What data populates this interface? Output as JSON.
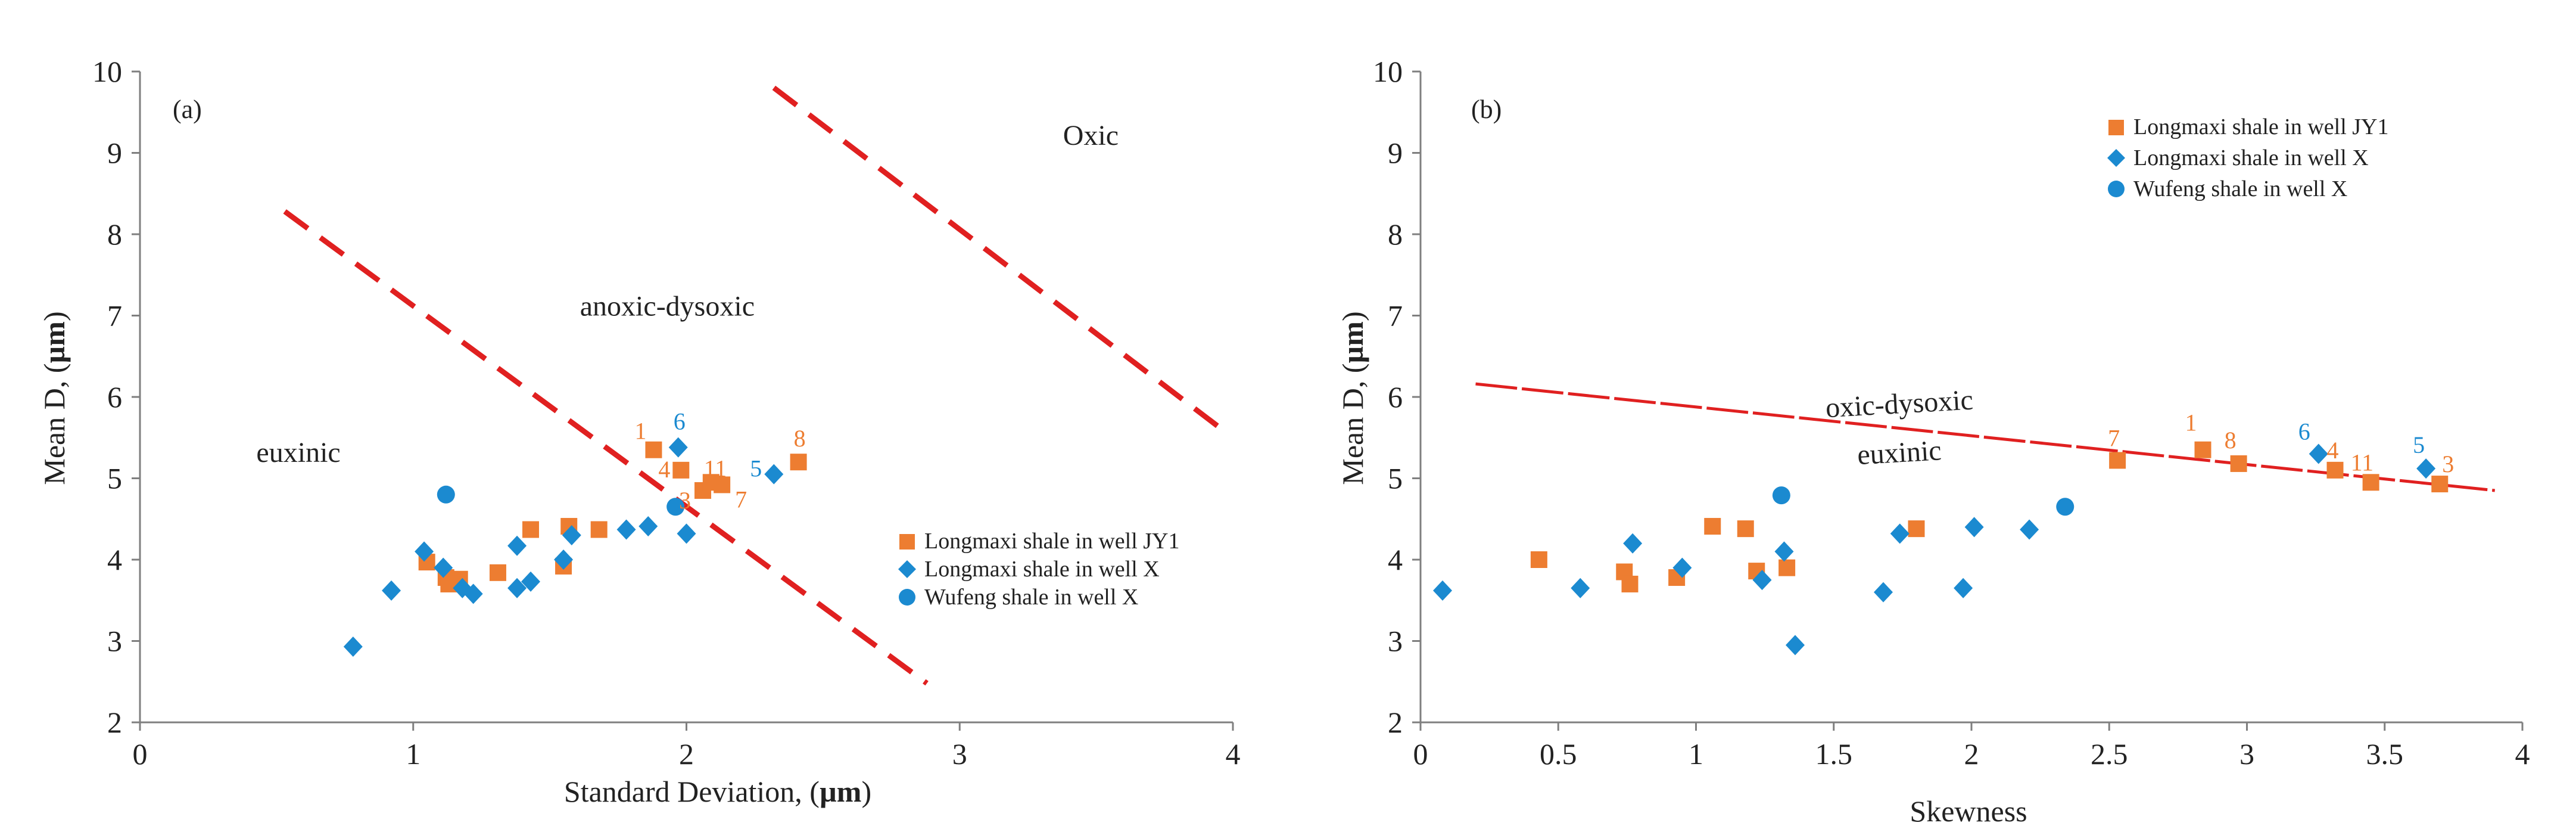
{
  "colors": {
    "jy1": "#ED7D31",
    "x": "#1B8AD0",
    "wufeng": "#1B8AD0",
    "line": "#E02020",
    "axis": "#7f7f7f"
  },
  "chart_data": [
    {
      "id": "a",
      "type": "scatter",
      "panel_label": "(a)",
      "xlabel_prefix": "Standard Deviation, (",
      "xlabel_unit": "µm",
      "xlabel_suffix": ")",
      "ylabel_prefix": "Mean D, (",
      "ylabel_unit": "µm",
      "ylabel_suffix": ")",
      "xlim": [
        0,
        4
      ],
      "ylim": [
        2,
        10
      ],
      "xticks": [
        "0",
        "1",
        "2",
        "3",
        "4"
      ],
      "yticks": [
        "2",
        "3",
        "4",
        "5",
        "6",
        "7",
        "8",
        "9",
        "10"
      ],
      "series": [
        {
          "name": "Longmaxi shale in well JY1",
          "marker": "square",
          "color": "#ED7D31",
          "x": [
            1.05,
            1.12,
            1.15,
            1.17,
            1.13,
            1.31,
            1.43,
            1.55,
            1.57,
            1.68,
            1.88,
            1.98,
            2.06,
            2.09,
            2.13,
            2.41
          ],
          "y": [
            3.97,
            3.78,
            3.72,
            3.76,
            3.7,
            3.84,
            4.37,
            3.92,
            4.41,
            4.37,
            5.35,
            5.1,
            4.85,
            4.95,
            4.92,
            5.2
          ]
        },
        {
          "name": "Longmaxi shale in well X",
          "marker": "diamond",
          "color": "#1B8AD0",
          "x": [
            0.78,
            0.92,
            1.04,
            1.11,
            1.18,
            1.22,
            1.38,
            1.38,
            1.43,
            1.55,
            1.58,
            1.78,
            1.86,
            1.97,
            2.0,
            2.32
          ],
          "y": [
            2.93,
            3.62,
            4.1,
            3.9,
            3.65,
            3.58,
            3.65,
            4.17,
            3.73,
            4.0,
            4.3,
            4.37,
            4.41,
            5.38,
            4.32,
            5.05
          ]
        },
        {
          "name": "Wufeng shale in well X",
          "marker": "circle",
          "color": "#1B8AD0",
          "x": [
            1.12,
            1.96
          ],
          "y": [
            4.8,
            4.65
          ]
        }
      ],
      "point_labels": [
        {
          "text": "1",
          "x": 1.88,
          "y": 5.35,
          "color": "#ED7D31"
        },
        {
          "text": "6",
          "x": 1.97,
          "y": 5.38,
          "color": "#1B8AD0"
        },
        {
          "text": "4",
          "x": 1.98,
          "y": 5.1,
          "color": "#ED7D31"
        },
        {
          "text": "11",
          "x": 2.09,
          "y": 4.95,
          "color": "#ED7D31"
        },
        {
          "text": "3",
          "x": 2.06,
          "y": 4.85,
          "color": "#ED7D31"
        },
        {
          "text": "7",
          "x": 2.13,
          "y": 4.92,
          "color": "#ED7D31"
        },
        {
          "text": "5",
          "x": 2.32,
          "y": 5.05,
          "color": "#1B8AD0"
        },
        {
          "text": "8",
          "x": 2.41,
          "y": 5.2,
          "color": "#ED7D31"
        }
      ],
      "boundaries": [
        {
          "from": [
            0.53,
            8.28
          ],
          "to": [
            2.88,
            2.48
          ]
        },
        {
          "from": [
            2.32,
            9.8
          ],
          "to": [
            3.98,
            5.55
          ]
        }
      ],
      "regions": [
        {
          "text": "euxinic",
          "x": 0.58,
          "y": 5.2
        },
        {
          "text": "anoxic-dysoxic",
          "x": 1.93,
          "y": 7.0
        },
        {
          "text": "Oxic",
          "x": 3.48,
          "y": 9.1
        }
      ],
      "legend": {
        "position": "right-middle",
        "entries": [
          "Longmaxi shale in well JY1",
          "Longmaxi shale in well X",
          "Wufeng shale in well X"
        ]
      }
    },
    {
      "id": "b",
      "type": "scatter",
      "panel_label": "(b)",
      "xlabel": "Skewness",
      "ylabel_prefix": "Mean D, (",
      "ylabel_unit": "µm",
      "ylabel_suffix": ")",
      "xlim": [
        0,
        4
      ],
      "ylim": [
        2,
        10
      ],
      "xticks": [
        "0",
        "0.5",
        "1",
        "1.5",
        "2",
        "2.5",
        "3",
        "3.5",
        "4"
      ],
      "yticks": [
        "2",
        "3",
        "4",
        "5",
        "6",
        "7",
        "8",
        "9",
        "10"
      ],
      "series": [
        {
          "name": "Longmaxi shale in well JY1",
          "marker": "square",
          "color": "#ED7D31",
          "x": [
            0.43,
            0.74,
            0.76,
            0.93,
            1.06,
            1.18,
            1.22,
            1.33,
            1.8,
            2.53,
            2.84,
            2.97,
            3.32,
            3.45,
            3.7
          ],
          "y": [
            4.0,
            3.85,
            3.7,
            3.78,
            4.41,
            4.38,
            3.86,
            3.9,
            4.38,
            5.22,
            5.35,
            5.18,
            5.1,
            4.95,
            4.93
          ]
        },
        {
          "name": "Longmaxi shale in well X",
          "marker": "diamond",
          "color": "#1B8AD0",
          "x": [
            0.08,
            0.58,
            0.77,
            0.95,
            1.24,
            1.32,
            1.36,
            1.68,
            1.74,
            1.97,
            2.01,
            2.21,
            3.26,
            3.65
          ],
          "y": [
            3.62,
            3.65,
            4.2,
            3.9,
            3.75,
            4.1,
            2.95,
            3.6,
            4.32,
            3.65,
            4.4,
            4.37,
            5.3,
            5.12
          ]
        },
        {
          "name": "Wufeng shale in well X",
          "marker": "circle",
          "color": "#1B8AD0",
          "x": [
            1.31,
            2.34
          ],
          "y": [
            4.79,
            4.65
          ]
        }
      ],
      "point_labels": [
        {
          "text": "7",
          "x": 2.53,
          "y": 5.22,
          "color": "#ED7D31"
        },
        {
          "text": "1",
          "x": 2.84,
          "y": 5.35,
          "color": "#ED7D31"
        },
        {
          "text": "8",
          "x": 2.97,
          "y": 5.18,
          "color": "#ED7D31"
        },
        {
          "text": "6",
          "x": 3.26,
          "y": 5.3,
          "color": "#1B8AD0"
        },
        {
          "text": "4",
          "x": 3.32,
          "y": 5.1,
          "color": "#ED7D31"
        },
        {
          "text": "11",
          "x": 3.45,
          "y": 4.95,
          "color": "#ED7D31"
        },
        {
          "text": "5",
          "x": 3.65,
          "y": 5.12,
          "color": "#1B8AD0"
        },
        {
          "text": "3",
          "x": 3.7,
          "y": 4.93,
          "color": "#ED7D31"
        }
      ],
      "boundaries": [
        {
          "from": [
            0.2,
            6.16
          ],
          "to": [
            3.9,
            4.85
          ]
        }
      ],
      "regions": [
        {
          "text": "oxic-dysoxic",
          "x": 1.74,
          "y": 5.8
        },
        {
          "text": "euxinic",
          "x": 1.74,
          "y": 5.2
        }
      ],
      "legend": {
        "position": "top-right",
        "entries": [
          "Longmaxi shale in well JY1",
          "Longmaxi shale in well X",
          "Wufeng shale in well X"
        ]
      }
    }
  ]
}
